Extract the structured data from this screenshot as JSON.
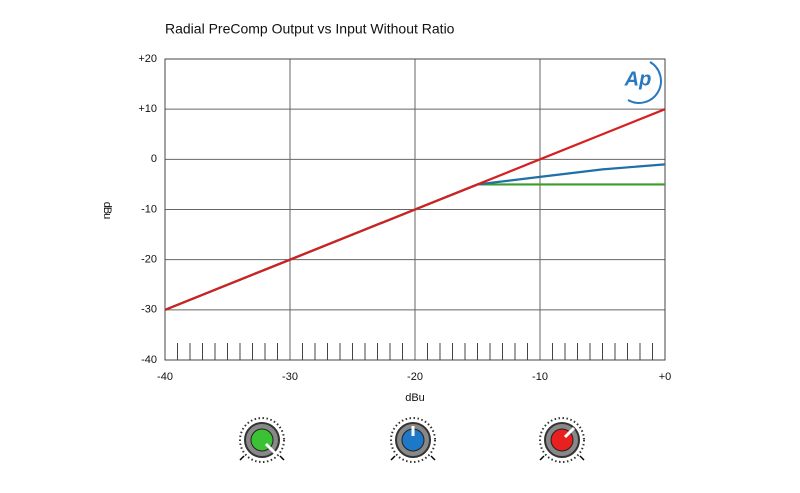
{
  "chart_data": {
    "type": "line",
    "title": "Radial PreComp Output vs Input Without Ratio",
    "logo": "Ap",
    "x_label": "dBu",
    "y_label": "dBu",
    "x": [
      -40,
      -30,
      -20,
      -15,
      -10,
      -5,
      0
    ],
    "series": [
      {
        "name": "Green",
        "color": "#3a9e2a",
        "values": [
          -30,
          -20,
          -10,
          -5,
          -5,
          -5,
          -5
        ]
      },
      {
        "name": "Blue",
        "color": "#1f6fa8",
        "values": [
          -30,
          -20,
          -10,
          -5,
          -3.5,
          -2,
          -1
        ]
      },
      {
        "name": "Red",
        "color": "#d62020",
        "values": [
          -30,
          -20,
          -10,
          -5,
          0,
          5,
          10
        ]
      }
    ],
    "xlim": [
      -40,
      0
    ],
    "ylim": [
      -40,
      20
    ],
    "xticks": [
      -40,
      -30,
      -20,
      -10,
      {
        "value": 0,
        "label": "+0"
      }
    ],
    "yticks": [
      {
        "value": 20,
        "label": "+20"
      },
      {
        "value": 10,
        "label": "+10"
      },
      0,
      -10,
      -20,
      -30,
      -40
    ],
    "xminorticks": [
      -39,
      -38,
      -37,
      -36,
      -35,
      -34,
      -33,
      -32,
      -31,
      -29,
      -28,
      -27,
      -26,
      -25,
      -24,
      -23,
      -22,
      -21,
      -19,
      -18,
      -17,
      -16,
      -15,
      -14,
      -13,
      -12,
      -11,
      -9,
      -8,
      -7,
      -6,
      -5,
      -4,
      -3,
      -2,
      -1
    ],
    "grid": true
  }
}
